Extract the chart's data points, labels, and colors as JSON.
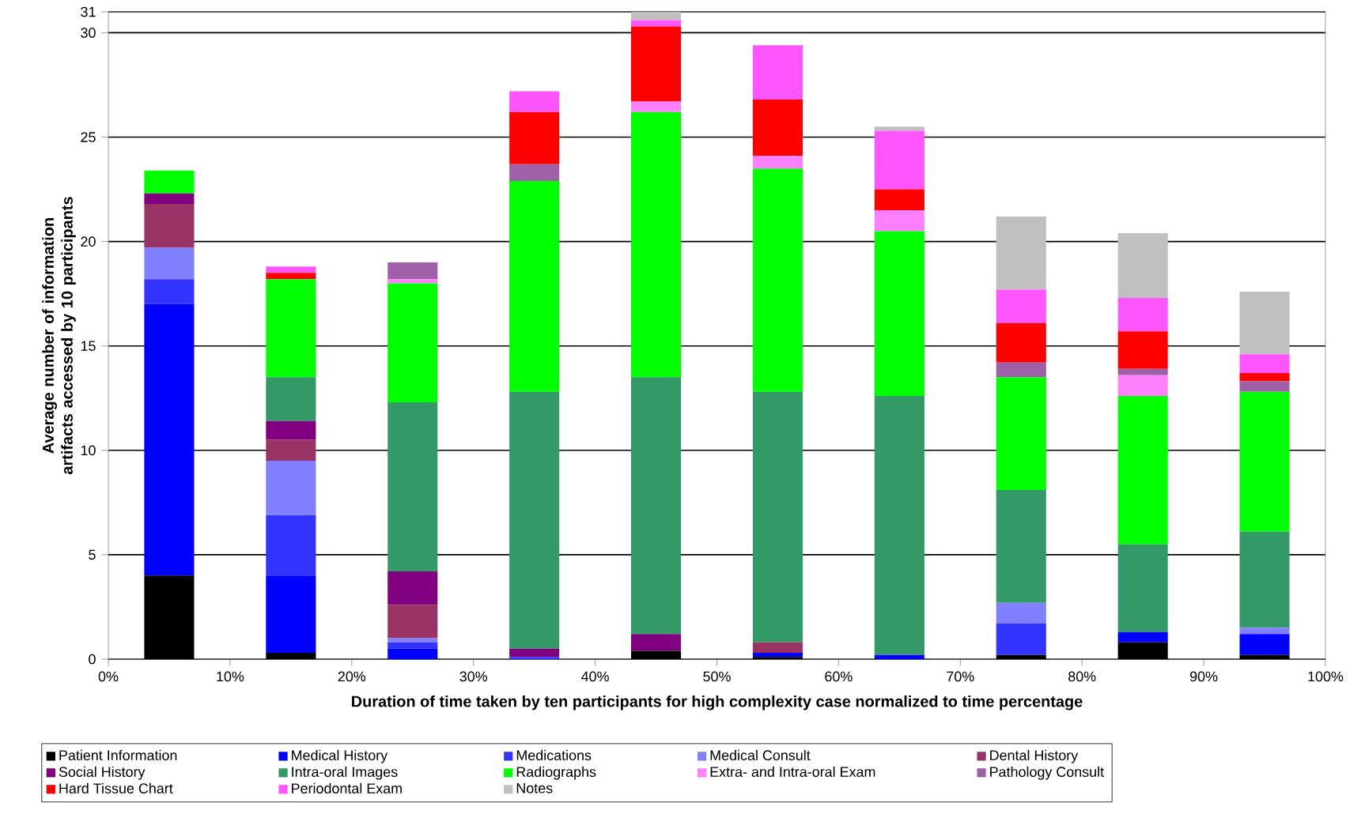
{
  "chart_data": {
    "type": "bar",
    "stacked": true,
    "xlabel": "Duration of time taken by ten participants for high complexity case normalized to time percentage",
    "ylabel": "Average number of information artifacts accessed by 10 participants",
    "x": [
      5,
      15,
      25,
      35,
      45,
      55,
      65,
      75,
      85,
      95
    ],
    "xlim": [
      0,
      100
    ],
    "xticks": [
      {
        "value": 0,
        "label": "0%"
      },
      {
        "value": 10,
        "label": "10%"
      },
      {
        "value": 20,
        "label": "20%"
      },
      {
        "value": 30,
        "label": "30%"
      },
      {
        "value": 40,
        "label": "40%"
      },
      {
        "value": 50,
        "label": "50%"
      },
      {
        "value": 60,
        "label": "60%"
      },
      {
        "value": 70,
        "label": "70%"
      },
      {
        "value": 80,
        "label": "80%"
      },
      {
        "value": 90,
        "label": "90%"
      },
      {
        "value": 100,
        "label": "100%"
      }
    ],
    "ylim": [
      0,
      31
    ],
    "yticks": [
      0,
      5,
      10,
      15,
      20,
      25,
      30,
      31
    ],
    "grid": "y",
    "legend": "bottom",
    "series": [
      {
        "name": "Patient Information",
        "color": "#000000",
        "values": [
          4.0,
          0.3,
          0,
          0,
          0.4,
          0.1,
          0,
          0.2,
          0.8,
          0.2
        ]
      },
      {
        "name": "Medical History",
        "color": "#0000ff",
        "values": [
          13.0,
          3.7,
          0.5,
          0,
          0,
          0.2,
          0.2,
          0,
          0.5,
          1.0
        ]
      },
      {
        "name": "Medications",
        "color": "#3333ff",
        "values": [
          1.2,
          2.9,
          0.3,
          0.1,
          0,
          0,
          0,
          1.5,
          0,
          0
        ]
      },
      {
        "name": "Medical Consult",
        "color": "#8080ff",
        "values": [
          1.5,
          2.6,
          0.2,
          0,
          0,
          0,
          0,
          1.0,
          0,
          0.3
        ]
      },
      {
        "name": "Dental History",
        "color": "#993366",
        "values": [
          2.1,
          1.0,
          1.6,
          0,
          0,
          0.5,
          0,
          0,
          0,
          0
        ]
      },
      {
        "name": "Social History",
        "color": "#800080",
        "values": [
          0.5,
          0.9,
          1.6,
          0.4,
          0.8,
          0,
          0,
          0,
          0,
          0
        ]
      },
      {
        "name": "Intra-oral Images",
        "color": "#339966",
        "values": [
          0,
          2.1,
          8.1,
          12.3,
          12.3,
          12.0,
          12.4,
          5.4,
          4.2,
          4.6
        ]
      },
      {
        "name": "Radiographs",
        "color": "#00ff00",
        "values": [
          1.1,
          4.7,
          5.7,
          10.1,
          12.7,
          10.7,
          7.9,
          5.4,
          7.1,
          6.7
        ]
      },
      {
        "name": "Extra- and Intra-oral Exam",
        "color": "#ff80ff",
        "values": [
          0,
          0,
          0.2,
          0,
          0.5,
          0.6,
          1.0,
          0,
          1.0,
          0
        ]
      },
      {
        "name": "Pathology Consult",
        "color": "#a060a8",
        "values": [
          0,
          0,
          0.8,
          0.8,
          0,
          0,
          0,
          0.7,
          0.3,
          0.5
        ]
      },
      {
        "name": "Hard Tissue Chart",
        "color": "#ff0000",
        "values": [
          0,
          0.3,
          0,
          2.5,
          3.6,
          2.7,
          1.0,
          1.9,
          1.8,
          0.4
        ]
      },
      {
        "name": "Periodontal Exam",
        "color": "#ff55ff",
        "values": [
          0,
          0.3,
          0,
          1.0,
          0.3,
          2.6,
          2.8,
          1.6,
          1.6,
          0.9
        ]
      },
      {
        "name": "Notes",
        "color": "#c0c0c0",
        "values": [
          0,
          0,
          0,
          0,
          0.4,
          0,
          0.2,
          3.5,
          3.1,
          3.0
        ]
      }
    ]
  }
}
